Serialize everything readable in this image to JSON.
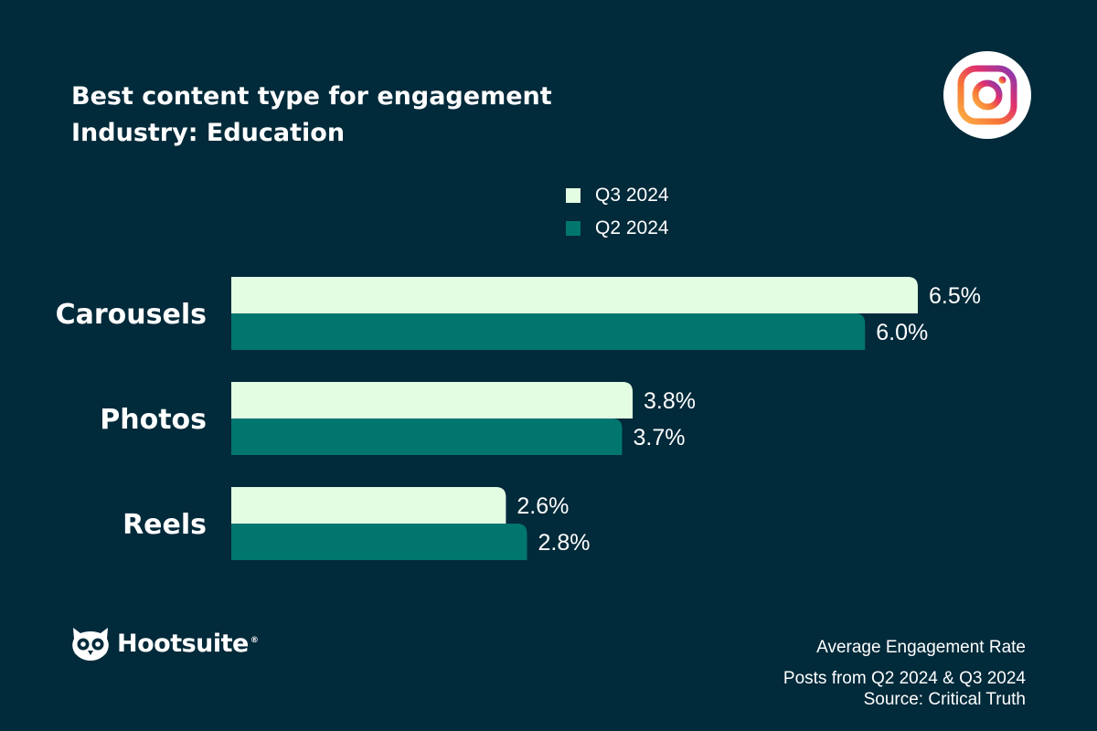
{
  "header": {
    "title": "Best content type for engagement",
    "subtitle": "Industry: Education",
    "platform_icon": "instagram-icon"
  },
  "brand": {
    "name": "Hootsuite",
    "registered_mark": "®",
    "logo_icon": "owl-logo-icon"
  },
  "footer": {
    "line1": "Average Engagement Rate",
    "line2": "Posts from Q2 2024 & Q3 2024",
    "line3": "Source: Critical Truth"
  },
  "colors": {
    "background": "#012a3a",
    "q3": "#e3fde3",
    "q2": "#01766f"
  },
  "chart_data": {
    "type": "bar",
    "orientation": "horizontal",
    "title": "Best content type for engagement",
    "subtitle": "Industry: Education",
    "categories": [
      "Carousels",
      "Photos",
      "Reels"
    ],
    "series": [
      {
        "name": "Q3 2024",
        "color": "#e3fde3",
        "values": [
          6.5,
          3.8,
          2.6
        ],
        "labels": [
          "6.5%",
          "3.8%",
          "2.6%"
        ]
      },
      {
        "name": "Q2 2024",
        "color": "#01766f",
        "values": [
          6.0,
          3.7,
          2.8
        ],
        "labels": [
          "6.0%",
          "3.7%",
          "2.8%"
        ]
      }
    ],
    "unit": "%",
    "xlim": [
      0,
      6.5
    ],
    "grid": false,
    "legend_position": "top-center"
  }
}
